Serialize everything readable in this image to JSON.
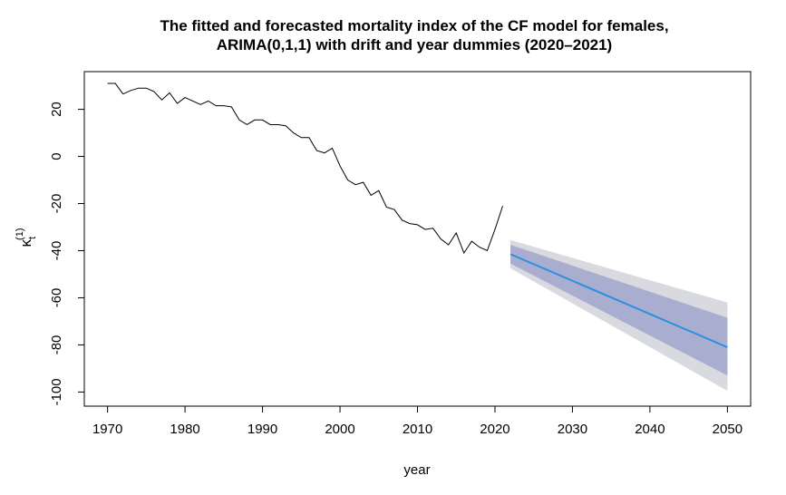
{
  "chart_data": {
    "type": "line",
    "title_line1": "The fitted and forecasted mortality index of the CF model for females,",
    "title_line2": "ARIMA(0,1,1) with drift and year dummies (2020–2021)",
    "xlabel": "year",
    "ylabel_main": "κ",
    "ylabel_sub": "t",
    "ylabel_sup": "(1)",
    "xlim": [
      1967,
      2053
    ],
    "ylim": [
      -106,
      36
    ],
    "x_ticks": [
      1970,
      1980,
      1990,
      2000,
      2010,
      2020,
      2030,
      2040,
      2050
    ],
    "x_tick_labels": [
      "1970",
      "1980",
      "1990",
      "2000",
      "2010",
      "2020",
      "2030",
      "2040",
      "2050"
    ],
    "y_ticks": [
      -100,
      -80,
      -60,
      -40,
      -20,
      0,
      20
    ],
    "y_tick_labels": [
      "-100",
      "-80",
      "-60",
      "-40",
      "-20",
      "0",
      "20"
    ],
    "grid": false,
    "colors": {
      "fitted": "#000000",
      "forecast": "#2b8fe0",
      "band_80": "#a9aed1",
      "band_95": "#d9d9e0"
    },
    "series": [
      {
        "role": "fitted",
        "x": [
          1970,
          1971,
          1972,
          1973,
          1974,
          1975,
          1976,
          1977,
          1978,
          1979,
          1980,
          1981,
          1982,
          1983,
          1984,
          1985,
          1986,
          1987,
          1988,
          1989,
          1990,
          1991,
          1992,
          1993,
          1994,
          1995,
          1996,
          1997,
          1998,
          1999,
          2000,
          2001,
          2002,
          2003,
          2004,
          2005,
          2006,
          2007,
          2008,
          2009,
          2010,
          2011,
          2012,
          2013,
          2014,
          2015,
          2016,
          2017,
          2018,
          2019,
          2020,
          2021
        ],
        "y": [
          31,
          31,
          26.5,
          28,
          29,
          29,
          27.5,
          24,
          27,
          22.5,
          25,
          23.5,
          22,
          23.5,
          21.5,
          21.5,
          21,
          15.5,
          13.5,
          15.5,
          15.5,
          13.5,
          13.5,
          13,
          10,
          8,
          8,
          2.5,
          1.5,
          3.5,
          -4,
          -10,
          -12,
          -11,
          -16.5,
          -14.5,
          -21.5,
          -22.5,
          -27,
          -28.5,
          -29,
          -31,
          -30.5,
          -35,
          -37.5,
          -32.5,
          -41,
          -36,
          -38.5,
          -40,
          -31,
          -21
        ]
      },
      {
        "role": "forecast",
        "x": [
          2022,
          2050
        ],
        "y": [
          -41.5,
          -81
        ]
      }
    ],
    "prediction_intervals": [
      {
        "level": "95%",
        "x": [
          2022,
          2050
        ],
        "lower": [
          -47.5,
          -99.5
        ],
        "upper": [
          -35.5,
          -62
        ]
      },
      {
        "level": "80%",
        "x": [
          2022,
          2050
        ],
        "lower": [
          -45.5,
          -93
        ],
        "upper": [
          -37.5,
          -68.5
        ]
      }
    ]
  }
}
